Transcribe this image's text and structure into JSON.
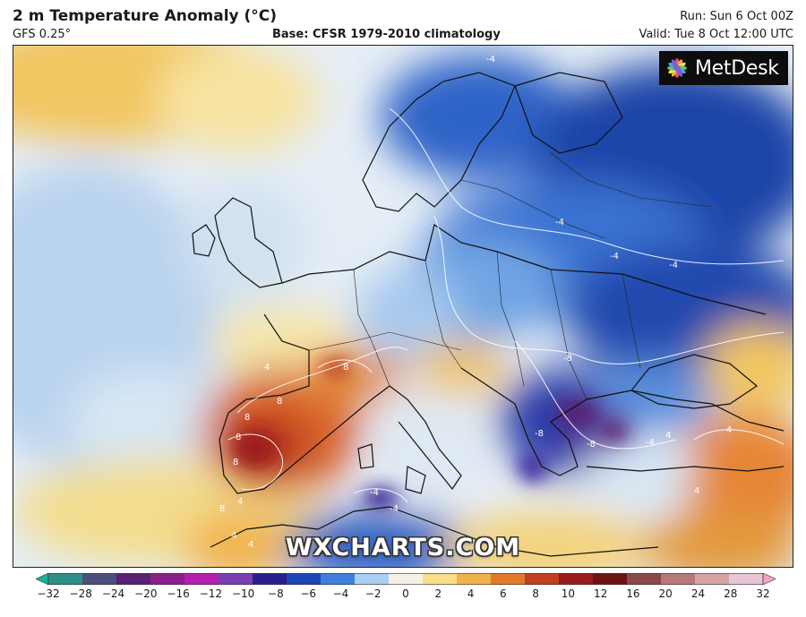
{
  "header": {
    "title": "2 m Temperature Anomaly (°C)",
    "model": "GFS 0.25°",
    "base": "Base: CFSR 1979-2010 climatology",
    "run": "Run: Sun 6 Oct 00Z",
    "valid": "Valid: Tue 8 Oct 12:00 UTC"
  },
  "logo": {
    "text": "MetDesk"
  },
  "watermark": "WXCHARTS.COM",
  "colorbar": {
    "ticks": [
      "−32",
      "−28",
      "−24",
      "−20",
      "−16",
      "−12",
      "−10",
      "−8",
      "−6",
      "−4",
      "−2",
      "0",
      "2",
      "4",
      "6",
      "8",
      "10",
      "12",
      "16",
      "20",
      "24",
      "28",
      "32"
    ],
    "colors": [
      "#1ab394",
      "#2d8f8a",
      "#4b4f7d",
      "#5a2073",
      "#8a1f8c",
      "#b41fae",
      "#7a3fae",
      "#2b1e8c",
      "#1c45b8",
      "#3f7fdc",
      "#a9d0f0",
      "#f4f2e6",
      "#f8e08a",
      "#f0b24a",
      "#e07a2a",
      "#c1401e",
      "#9a1a1a",
      "#6e1313",
      "#8a4a4a",
      "#b77878",
      "#d7a3a3",
      "#e8c5d5",
      "#f5a3c8"
    ]
  },
  "map": {
    "contour_labels": [
      "8",
      "8",
      "8",
      "8",
      "8",
      "4",
      "4",
      "4",
      "4",
      "8",
      "-4",
      "-4",
      "-4",
      "-4",
      "-8",
      "-8",
      "-4",
      "-4",
      "-4",
      "-8",
      "4",
      "4",
      "4"
    ]
  }
}
